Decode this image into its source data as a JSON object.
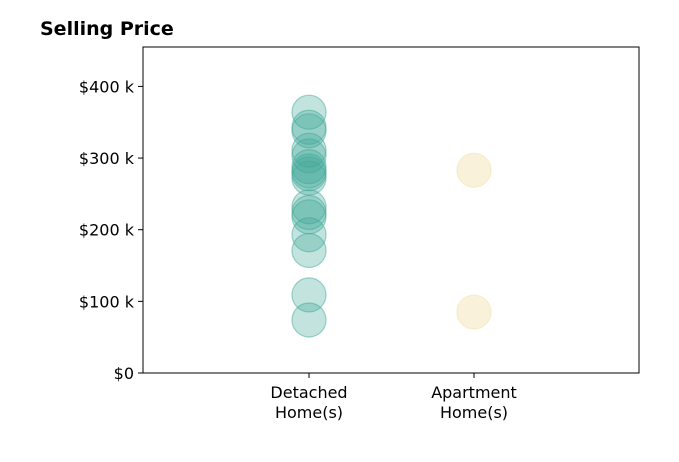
{
  "chart_data": {
    "type": "scatter",
    "title": "Selling Price",
    "xlabel": "",
    "ylabel": "",
    "categories": [
      "Detached\nHome(s)",
      "Apartment\nHome(s)"
    ],
    "ylim": [
      0,
      455000
    ],
    "yticks": [
      {
        "value": 0,
        "label": "$0"
      },
      {
        "value": 100000,
        "label": "$100 k"
      },
      {
        "value": 200000,
        "label": "$200 k"
      },
      {
        "value": 300000,
        "label": "$300 k"
      },
      {
        "value": 400000,
        "label": "$400 k"
      }
    ],
    "grid": false,
    "legend": "none",
    "series": [
      {
        "category": "Detached\nHome(s)",
        "color": "#41a898",
        "values": [
          364000,
          343000,
          338000,
          311000,
          303000,
          288000,
          282000,
          278000,
          272000,
          232000,
          224000,
          218000,
          193000,
          171000,
          109000,
          74000
        ]
      },
      {
        "category": "Apartment\nHome(s)",
        "color": "#f3dfac",
        "values": [
          283000,
          85000
        ]
      }
    ]
  }
}
